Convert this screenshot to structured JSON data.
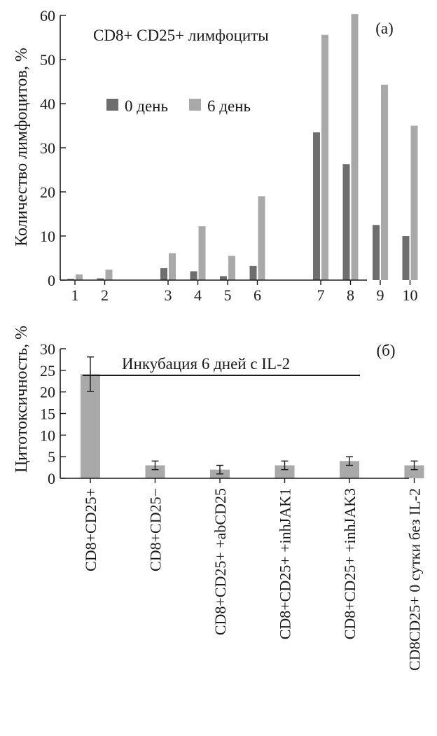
{
  "colors": {
    "day0": "#6e6e6e",
    "day6": "#a9a9a9",
    "bar_b": "#a9a9a9",
    "ink": "#1a1a1a"
  },
  "chart_data": [
    {
      "type": "bar",
      "panel_label": "(а)",
      "title": "CD8+ CD25+ лимфоциты",
      "ylabel": "Количество лимфоцитов, %",
      "xlabel": "",
      "ylim": [
        0,
        60
      ],
      "yticks": [
        "0",
        "10",
        "20",
        "30",
        "40",
        "50",
        "60"
      ],
      "categories": [
        "1",
        "2",
        "3",
        "4",
        "5",
        "6",
        "7",
        "8",
        "9",
        "10"
      ],
      "groups": [
        [
          0,
          1
        ],
        [
          2,
          3,
          4,
          5
        ],
        [
          6,
          7,
          8,
          9
        ]
      ],
      "legend_position": "upper-left",
      "grid": false,
      "series": [
        {
          "name": "0 день",
          "values": [
            0.3,
            0.4,
            2.7,
            2.0,
            0.9,
            3.2,
            33.5,
            26.3,
            12.5,
            10.0
          ]
        },
        {
          "name": "6 день",
          "values": [
            1.3,
            2.4,
            6.1,
            12.2,
            5.5,
            19.0,
            55.6,
            60.3,
            44.3,
            35.0
          ]
        }
      ]
    },
    {
      "type": "bar",
      "panel_label": "(б)",
      "ylabel": "Цитотоксичность, %",
      "xlabel": "",
      "ylim": [
        0,
        30
      ],
      "yticks": [
        "0",
        "5",
        "10",
        "15",
        "20",
        "25",
        "30"
      ],
      "annotation": "Инкубация 6 дней с IL-2",
      "grid": false,
      "categories": [
        "CD8+CD25+",
        "CD8+CD25−",
        "CD8+CD25+ +abCD25",
        "CD8+CD25+ +inhJAK1",
        "CD8+CD25+ +inhJAK3",
        "CD8CD25+ 0 сутки без IL-2"
      ],
      "values": [
        24.1,
        3.0,
        2.0,
        3.0,
        4.0,
        3.0
      ],
      "errors": [
        4.0,
        1.0,
        1.0,
        1.0,
        1.0,
        1.0
      ]
    }
  ]
}
